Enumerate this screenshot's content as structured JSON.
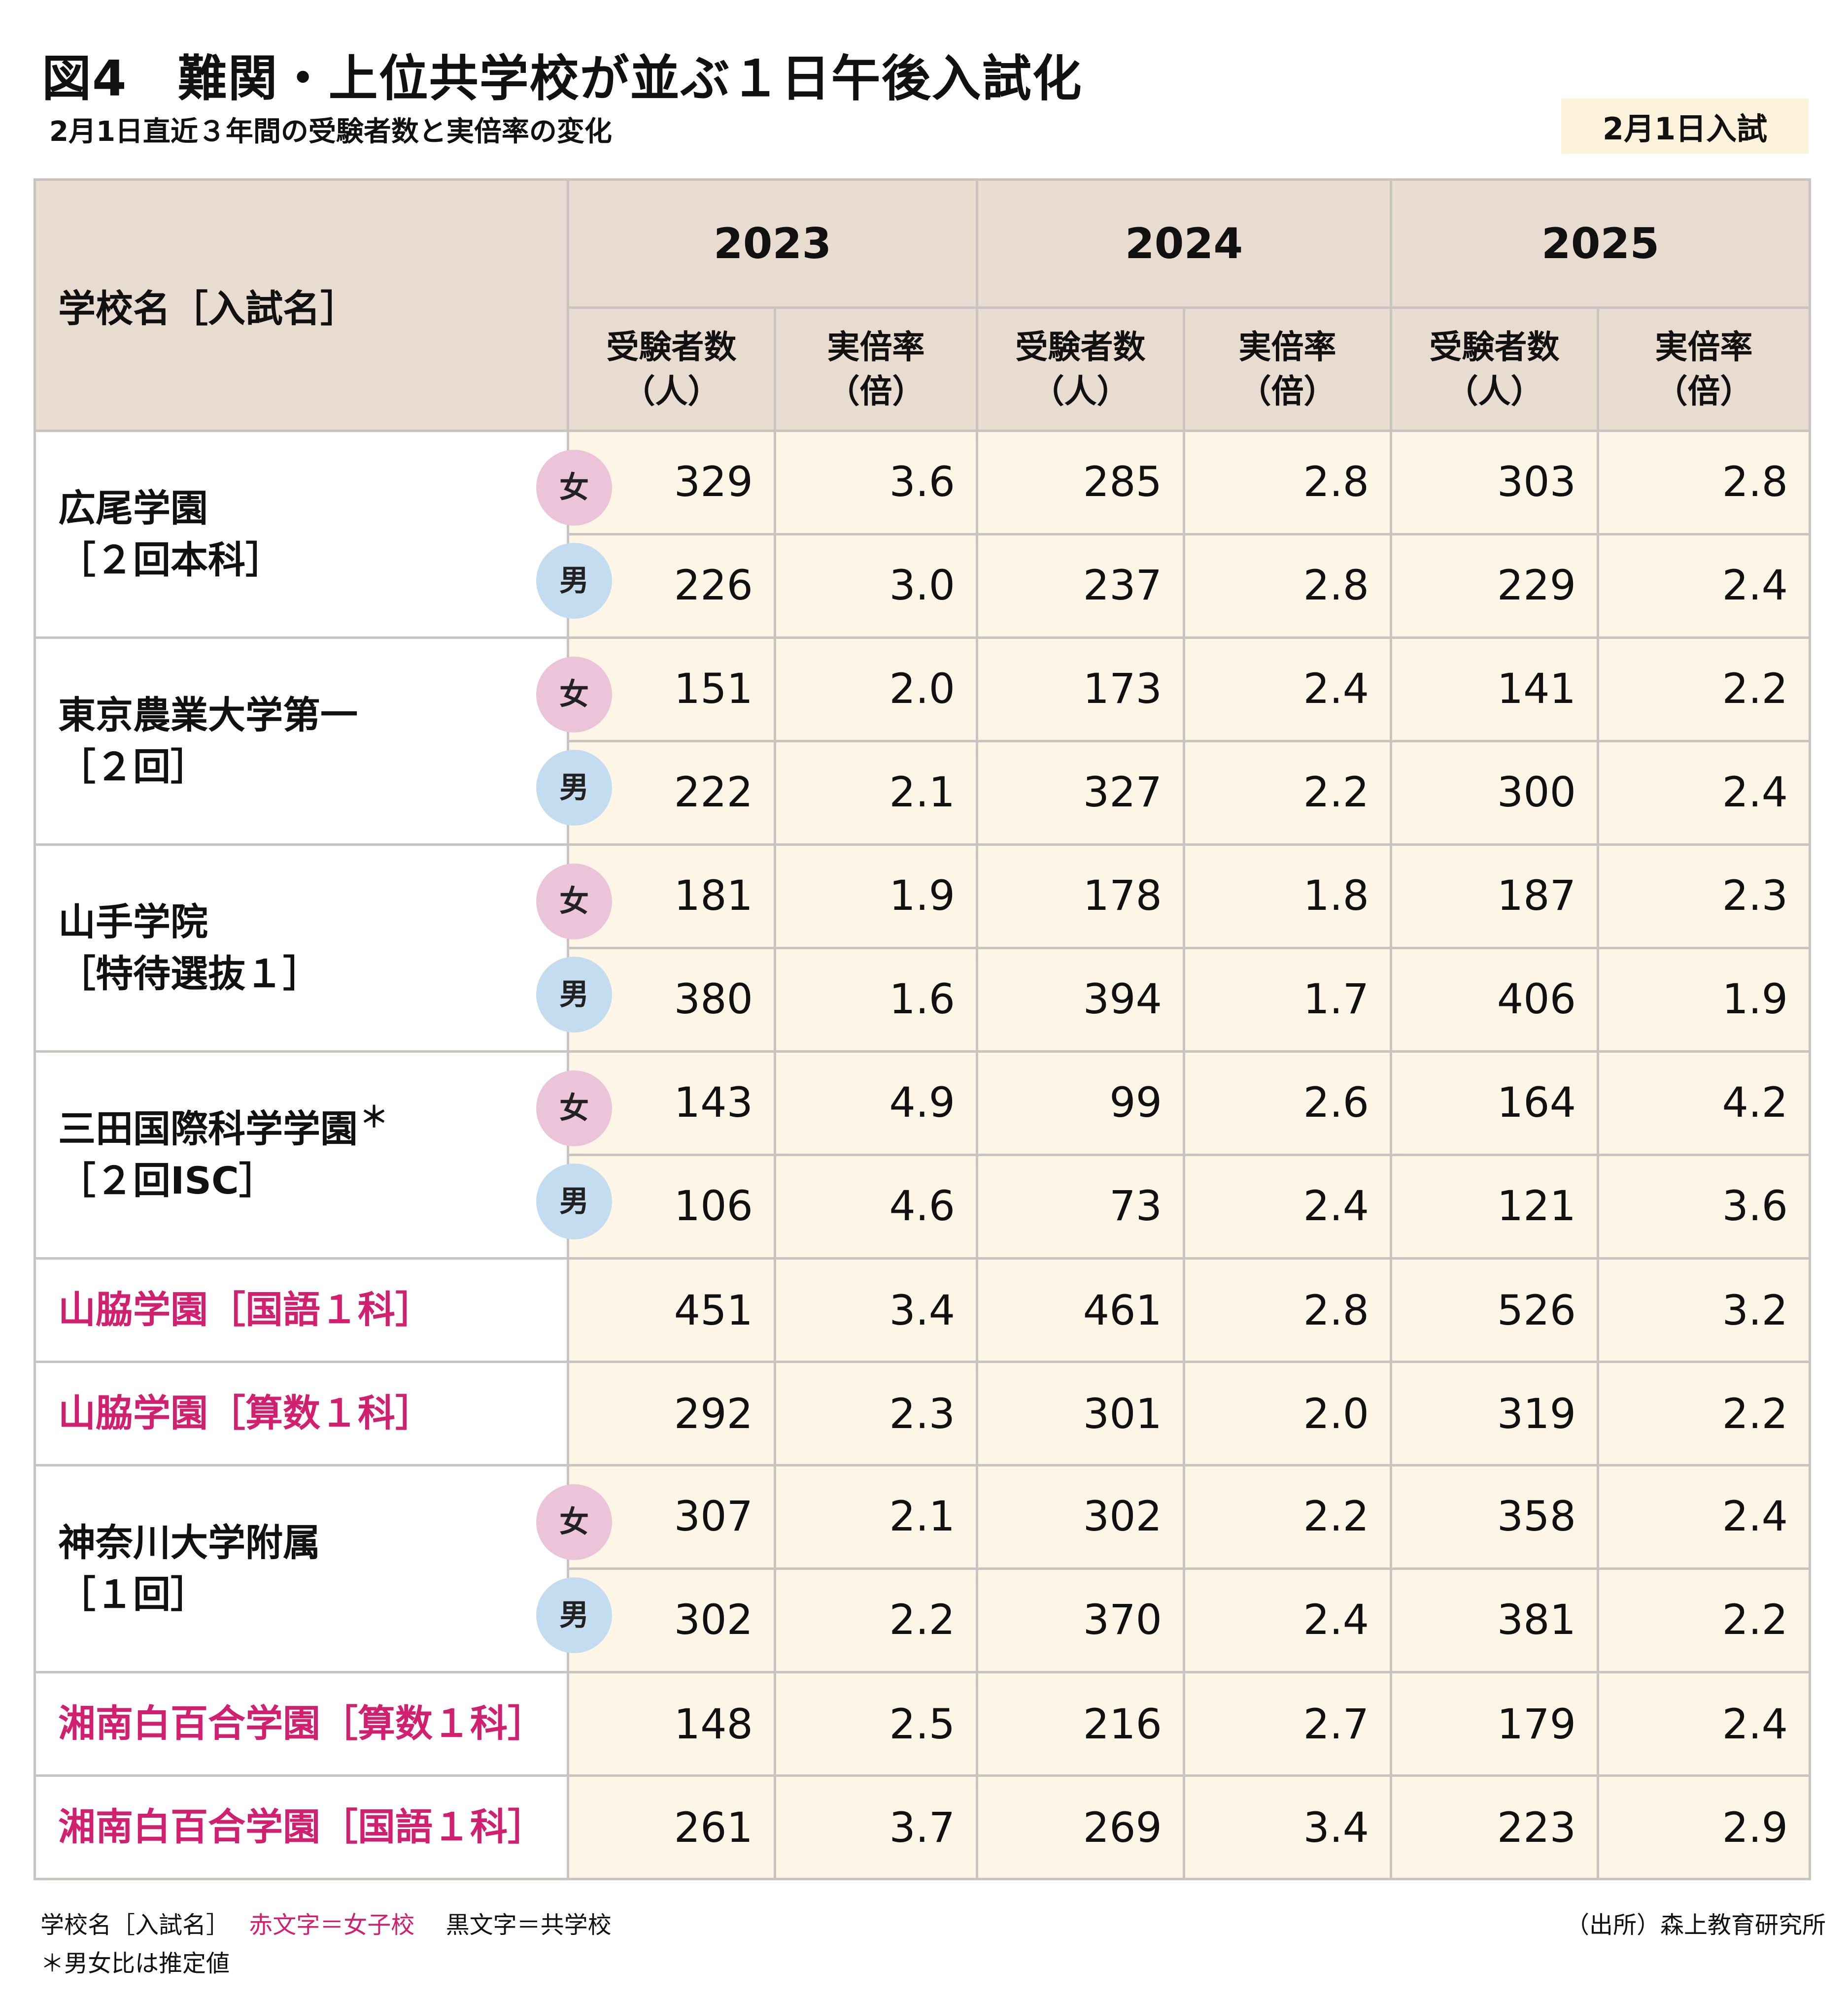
{
  "header": {
    "title": "図4　難関・上位共学校が並ぶ１日午後入試化",
    "subtitle": "2月1日直近３年間の受験者数と実倍率の変化",
    "tag": "2月1日入試"
  },
  "table": {
    "name_header": "学校名［入試名］",
    "years": [
      "2023",
      "2024",
      "2025"
    ],
    "count_header": [
      "受験者数",
      "（人）"
    ],
    "ratio_header": [
      "実倍率",
      "（倍）"
    ],
    "female_label": "女",
    "male_label": "男",
    "rows": [
      {
        "name": "広尾学園",
        "exam": "［２回本科］",
        "asterisk": "",
        "pink": false,
        "female": [
          "329",
          "3.6",
          "285",
          "2.8",
          "303",
          "2.8"
        ],
        "male": [
          "226",
          "3.0",
          "237",
          "2.8",
          "229",
          "2.4"
        ]
      },
      {
        "name": "東京農業大学第一",
        "exam": "［２回］",
        "asterisk": "",
        "pink": false,
        "female": [
          "151",
          "2.0",
          "173",
          "2.4",
          "141",
          "2.2"
        ],
        "male": [
          "222",
          "2.1",
          "327",
          "2.2",
          "300",
          "2.4"
        ]
      },
      {
        "name": "山手学院",
        "exam": "［特待選抜１］",
        "asterisk": "",
        "pink": false,
        "female": [
          "181",
          "1.9",
          "178",
          "1.8",
          "187",
          "2.3"
        ],
        "male": [
          "380",
          "1.6",
          "394",
          "1.7",
          "406",
          "1.9"
        ]
      },
      {
        "name": "三田国際科学学園",
        "exam": "［２回ISC］",
        "asterisk": "＊",
        "pink": false,
        "female": [
          "143",
          "4.9",
          "99",
          "2.6",
          "164",
          "4.2"
        ],
        "male": [
          "106",
          "4.6",
          "73",
          "2.4",
          "121",
          "3.6"
        ]
      },
      {
        "name": "山脇学園［国語１科］",
        "pink": true,
        "values": [
          "451",
          "3.4",
          "461",
          "2.8",
          "526",
          "3.2"
        ]
      },
      {
        "name": "山脇学園［算数１科］",
        "pink": true,
        "values": [
          "292",
          "2.3",
          "301",
          "2.0",
          "319",
          "2.2"
        ]
      },
      {
        "name": "神奈川大学附属",
        "exam": "［１回］",
        "asterisk": "",
        "pink": false,
        "female": [
          "307",
          "2.1",
          "302",
          "2.2",
          "358",
          "2.4"
        ],
        "male": [
          "302",
          "2.2",
          "370",
          "2.4",
          "381",
          "2.2"
        ]
      },
      {
        "name": "湘南白百合学園［算数１科］",
        "pink": true,
        "values": [
          "148",
          "2.5",
          "216",
          "2.7",
          "179",
          "2.4"
        ]
      },
      {
        "name": "湘南白百合学園［国語１科］",
        "pink": true,
        "values": [
          "261",
          "3.7",
          "269",
          "3.4",
          "223",
          "2.9"
        ]
      }
    ]
  },
  "footer": {
    "legend_prefix": "学校名［入試名］",
    "legend_red": "赤文字＝女子校",
    "legend_black": "黒文字＝共学校",
    "note": "＊男女比は推定値",
    "source": "（出所）森上教育研究所"
  },
  "colors": {
    "header_bg": "#e8dcd1",
    "cell_bg": "#fdf6e7",
    "pink_text": "#d1206f",
    "female_badge": "#ecc4d9",
    "male_badge": "#c3dcef"
  }
}
